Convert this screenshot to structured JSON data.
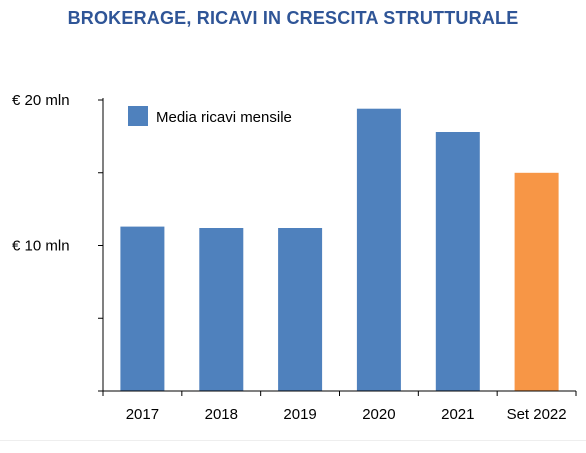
{
  "colors": {
    "title": "#2f5597",
    "bar_primary": "#4f81bd",
    "bar_highlight": "#f79646",
    "axis": "#000000",
    "text": "#000000"
  },
  "chart_data": {
    "type": "bar",
    "title": "BROKERAGE, RICAVI IN CRESCITA STRUTTURALE",
    "categories": [
      "2017",
      "2018",
      "2019",
      "2020",
      "2021",
      "Set 2022"
    ],
    "series": [
      {
        "name": "Media ricavi mensile",
        "values": [
          11.3,
          11.2,
          11.2,
          19.4,
          17.8,
          15.0
        ]
      }
    ],
    "highlight_category": "Set 2022",
    "ylim": [
      0,
      20
    ],
    "yticks": [
      0,
      5,
      10,
      15,
      20
    ],
    "ytick_labels": [
      {
        "value": 10,
        "label": "€ 10 mln"
      },
      {
        "value": 20,
        "label": "€ 20 mln"
      }
    ],
    "legend_position": "top-left",
    "grid": false,
    "xlabel": "",
    "ylabel": ""
  }
}
